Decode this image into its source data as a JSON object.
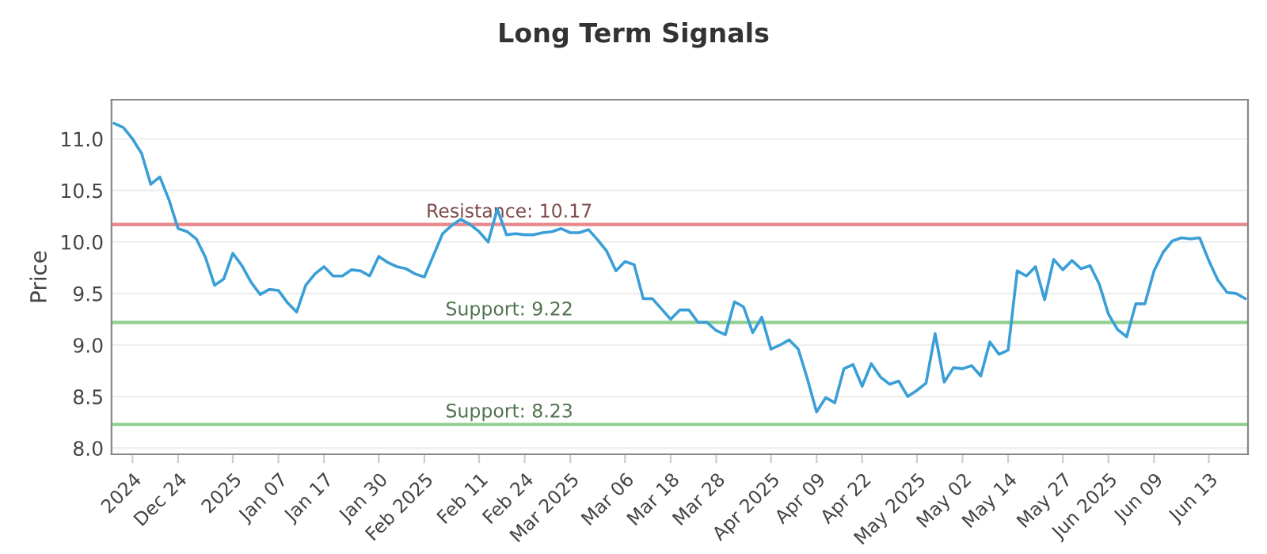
{
  "chart_data": {
    "type": "line",
    "title": "Long Term Signals",
    "ylabel": "Price",
    "categories": [
      null,
      null,
      "2024",
      null,
      null,
      null,
      null,
      "Dec 24",
      null,
      null,
      null,
      null,
      null,
      "2025",
      null,
      null,
      null,
      null,
      "Jan 07",
      null,
      null,
      null,
      null,
      "Jan 17",
      null,
      null,
      null,
      null,
      null,
      "Jan 30",
      null,
      null,
      null,
      null,
      "Feb 2025",
      null,
      null,
      null,
      null,
      null,
      "Feb 11",
      null,
      null,
      null,
      null,
      "Feb 24",
      null,
      null,
      null,
      null,
      "Mar 2025",
      null,
      null,
      null,
      null,
      null,
      "Mar 06",
      null,
      null,
      null,
      null,
      "Mar 18",
      null,
      null,
      null,
      null,
      "Mar 28",
      null,
      null,
      null,
      null,
      null,
      "Apr 2025",
      null,
      null,
      null,
      null,
      "Apr 09",
      null,
      null,
      null,
      null,
      "Apr 22",
      null,
      null,
      null,
      null,
      null,
      "May 2025",
      null,
      null,
      null,
      null,
      "May 02",
      null,
      null,
      null,
      null,
      "May 14",
      null,
      null,
      null,
      null,
      null,
      "May 27",
      null,
      null,
      null,
      null,
      "Jun 2025",
      null,
      null,
      null,
      null,
      "Jun 09",
      null,
      null,
      null,
      null,
      null,
      "Jun 13",
      null,
      null,
      null,
      null
    ],
    "series": [
      {
        "color": "#3a9fd6",
        "values": [
          11.15,
          11.11,
          11.0,
          10.86,
          10.56,
          10.63,
          10.41,
          10.13,
          10.1,
          10.03,
          9.85,
          9.58,
          9.64,
          9.89,
          9.77,
          9.61,
          9.49,
          9.54,
          9.53,
          9.41,
          9.32,
          9.58,
          9.69,
          9.76,
          9.67,
          9.67,
          9.73,
          9.72,
          9.67,
          9.86,
          9.8,
          9.76,
          9.74,
          9.69,
          9.66,
          9.87,
          10.08,
          10.16,
          10.22,
          10.17,
          10.1,
          10.0,
          10.32,
          10.07,
          10.08,
          10.07,
          10.07,
          10.09,
          10.1,
          10.13,
          10.09,
          10.09,
          10.12,
          10.02,
          9.91,
          9.72,
          9.81,
          9.78,
          9.45,
          9.45,
          9.35,
          9.25,
          9.34,
          9.34,
          9.22,
          9.22,
          9.14,
          9.1,
          9.42,
          9.37,
          9.12,
          9.27,
          8.96,
          9.0,
          9.05,
          8.96,
          8.67,
          8.35,
          8.49,
          8.44,
          8.77,
          8.81,
          8.6,
          8.82,
          8.69,
          8.62,
          8.65,
          8.5,
          8.56,
          8.63,
          9.11,
          8.64,
          8.78,
          8.77,
          8.8,
          8.7,
          9.03,
          8.91,
          8.95,
          9.72,
          9.67,
          9.76,
          9.44,
          9.83,
          9.73,
          9.82,
          9.74,
          9.77,
          9.59,
          9.3,
          9.15,
          9.08,
          9.4,
          9.4,
          9.72,
          9.9,
          10.01,
          10.04,
          10.03,
          10.04,
          9.82,
          9.63,
          9.51,
          9.5,
          9.45
        ]
      }
    ],
    "ylim": [
      7.94,
      11.38
    ],
    "yticks": [
      {
        "value": 8,
        "label": "8.0"
      },
      {
        "value": 8.5,
        "label": "8.5"
      },
      {
        "value": 9,
        "label": "9.0"
      },
      {
        "value": 9.5,
        "label": "9.5"
      },
      {
        "value": 10,
        "label": "10.0"
      },
      {
        "value": 10.5,
        "label": "10.5"
      },
      {
        "value": 11,
        "label": "11.0"
      }
    ],
    "grid": "y",
    "ref_lines": [
      {
        "axis": "y",
        "value": 10.17,
        "label": "Resistance: 10.17",
        "color": "#e8878a"
      },
      {
        "axis": "y",
        "value": 9.22,
        "label": "Support: 9.22",
        "color": "#8fcf8f"
      },
      {
        "axis": "y",
        "value": 8.23,
        "label": "Support: 8.23",
        "color": "#8fcf8f"
      }
    ]
  }
}
